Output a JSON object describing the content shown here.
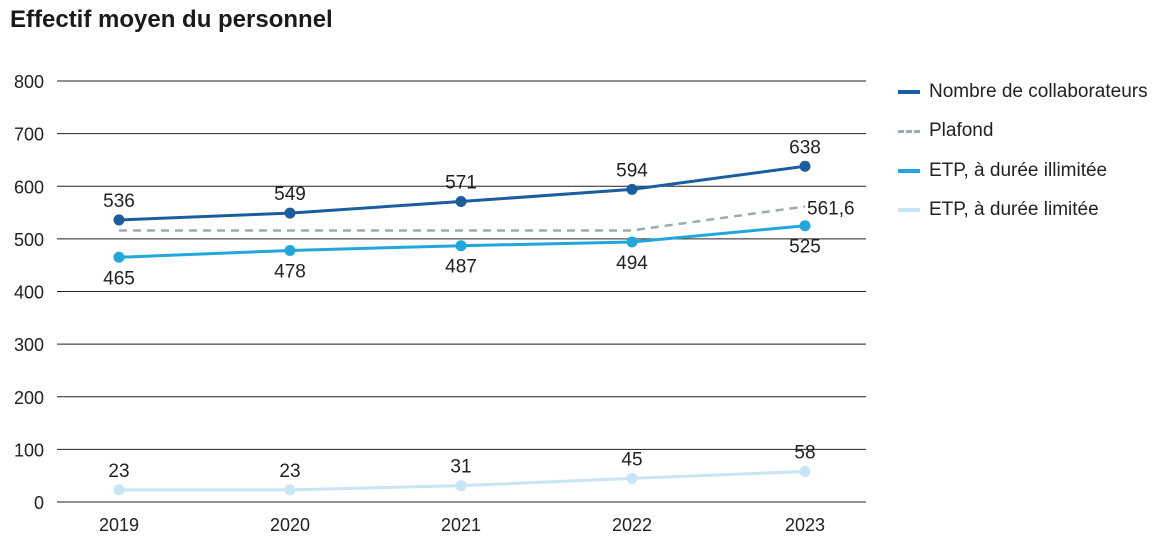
{
  "chart_data": {
    "type": "line",
    "title": "Effectif moyen du personnel",
    "xlabel": "",
    "ylabel": "",
    "categories": [
      "2019",
      "2020",
      "2021",
      "2022",
      "2023"
    ],
    "ylim": [
      0,
      800
    ],
    "yticks": [
      "0",
      "100",
      "200",
      "300",
      "400",
      "500",
      "600",
      "700",
      "800"
    ],
    "grid": true,
    "legend_position": "right",
    "series": [
      {
        "name": "Nombre de collaborateurs",
        "values": [
          536,
          549,
          571,
          594,
          638
        ],
        "labels": [
          "536",
          "549",
          "571",
          "594",
          "638"
        ],
        "label_side": "above",
        "color": "#1b5d9e",
        "style": "solid",
        "markers": true
      },
      {
        "name": "Plafond",
        "values": [
          516,
          516,
          516,
          516,
          561.6
        ],
        "labels": [
          null,
          null,
          null,
          null,
          "561,6"
        ],
        "label_side": "right",
        "color": "#9aadae",
        "style": "dashed",
        "markers": false
      },
      {
        "name": "ETP, à durée illimitée",
        "values": [
          465,
          478,
          487,
          494,
          525
        ],
        "labels": [
          "465",
          "478",
          "487",
          "494",
          "525"
        ],
        "label_side": "below",
        "color": "#22a7dc",
        "style": "solid",
        "markers": true
      },
      {
        "name": "ETP, à durée limitée",
        "values": [
          23,
          23,
          31,
          45,
          58
        ],
        "labels": [
          "23",
          "23",
          "31",
          "45",
          "58"
        ],
        "label_side": "above",
        "color": "#c7e5f6",
        "style": "solid",
        "markers": true
      }
    ]
  }
}
